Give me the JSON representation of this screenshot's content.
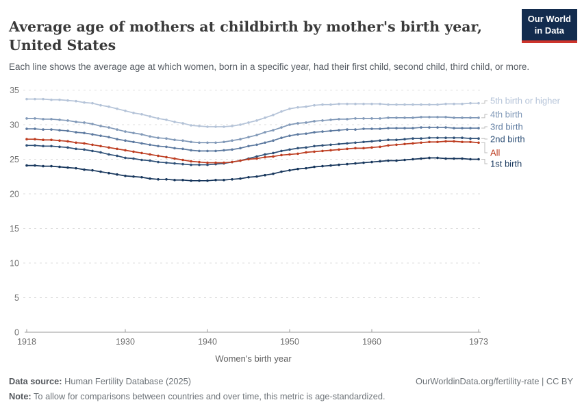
{
  "header": {
    "title": "Average age of mothers at childbirth by mother's birth year, United States",
    "subtitle": "Each line shows the average age at which women, born in a specific year, had their first child, second child, third child, or more.",
    "logo_line1": "Our World",
    "logo_line2": "in Data"
  },
  "chart_data": {
    "type": "line",
    "title": "Average age of mothers at childbirth by mother's birth year, United States",
    "xlabel": "Women's birth year",
    "ylabel": "",
    "x_range": [
      1918,
      1973
    ],
    "ylim": [
      0,
      35
    ],
    "yticks": [
      0,
      5,
      10,
      15,
      20,
      25,
      30,
      35
    ],
    "xticks": [
      1918,
      1930,
      1940,
      1950,
      1960,
      1973
    ],
    "grid": "dashed horizontal gridlines",
    "legend_position": "right",
    "series": [
      {
        "name": "5th birth or higher",
        "color": "#b4c3d8",
        "values": [
          33.7,
          33.7,
          33.7,
          33.6,
          33.6,
          33.5,
          33.4,
          33.2,
          33.1,
          32.8,
          32.6,
          32.3,
          32.0,
          31.7,
          31.5,
          31.2,
          30.9,
          30.7,
          30.4,
          30.2,
          29.9,
          29.8,
          29.7,
          29.7,
          29.7,
          29.8,
          30.0,
          30.3,
          30.6,
          31.0,
          31.4,
          31.9,
          32.3,
          32.5,
          32.6,
          32.8,
          32.9,
          32.9,
          33.0,
          33.0,
          33.0,
          33.0,
          33.0,
          33.0,
          32.9,
          32.9,
          32.9,
          32.9,
          32.9,
          32.9,
          32.9,
          33.0,
          33.0,
          33.0,
          33.1,
          33.1
        ]
      },
      {
        "name": "4th birth",
        "color": "#8199b8",
        "values": [
          30.9,
          30.9,
          30.8,
          30.8,
          30.7,
          30.6,
          30.4,
          30.3,
          30.1,
          29.8,
          29.6,
          29.3,
          29.0,
          28.8,
          28.6,
          28.3,
          28.1,
          28.0,
          27.8,
          27.7,
          27.5,
          27.4,
          27.4,
          27.4,
          27.5,
          27.7,
          27.9,
          28.2,
          28.5,
          28.9,
          29.2,
          29.6,
          30.0,
          30.2,
          30.3,
          30.5,
          30.6,
          30.7,
          30.8,
          30.8,
          30.9,
          30.9,
          30.9,
          30.9,
          31.0,
          31.0,
          31.0,
          31.0,
          31.1,
          31.1,
          31.1,
          31.1,
          31.0,
          31.0,
          31.0,
          31.0
        ]
      },
      {
        "name": "3rd birth",
        "color": "#5d7aa0",
        "values": [
          29.4,
          29.4,
          29.3,
          29.3,
          29.2,
          29.1,
          28.9,
          28.8,
          28.6,
          28.4,
          28.2,
          27.9,
          27.7,
          27.5,
          27.3,
          27.1,
          26.9,
          26.8,
          26.6,
          26.5,
          26.3,
          26.2,
          26.2,
          26.2,
          26.3,
          26.4,
          26.6,
          26.9,
          27.1,
          27.4,
          27.7,
          28.1,
          28.4,
          28.6,
          28.7,
          28.9,
          29.0,
          29.1,
          29.2,
          29.3,
          29.3,
          29.4,
          29.4,
          29.4,
          29.5,
          29.5,
          29.5,
          29.5,
          29.6,
          29.6,
          29.6,
          29.6,
          29.5,
          29.5,
          29.5,
          29.5
        ]
      },
      {
        "name": "2nd birth",
        "color": "#2e5077",
        "values": [
          27.0,
          27.0,
          26.9,
          26.9,
          26.8,
          26.7,
          26.5,
          26.4,
          26.2,
          26.0,
          25.7,
          25.5,
          25.2,
          25.1,
          24.9,
          24.8,
          24.6,
          24.5,
          24.4,
          24.3,
          24.2,
          24.2,
          24.2,
          24.3,
          24.4,
          24.6,
          24.8,
          25.1,
          25.4,
          25.7,
          25.9,
          26.2,
          26.4,
          26.6,
          26.7,
          26.9,
          27.0,
          27.1,
          27.2,
          27.3,
          27.4,
          27.5,
          27.6,
          27.7,
          27.8,
          27.8,
          27.9,
          28.0,
          28.0,
          28.1,
          28.1,
          28.1,
          28.1,
          28.1,
          28.0,
          28.0
        ]
      },
      {
        "name": "All",
        "color": "#bd3d21",
        "values": [
          27.9,
          27.9,
          27.8,
          27.8,
          27.7,
          27.6,
          27.4,
          27.3,
          27.1,
          26.9,
          26.7,
          26.5,
          26.3,
          26.1,
          25.9,
          25.7,
          25.5,
          25.3,
          25.1,
          24.9,
          24.7,
          24.6,
          24.5,
          24.5,
          24.5,
          24.6,
          24.8,
          25.0,
          25.1,
          25.3,
          25.4,
          25.6,
          25.7,
          25.8,
          26.0,
          26.1,
          26.2,
          26.3,
          26.4,
          26.5,
          26.6,
          26.6,
          26.7,
          26.8,
          27.0,
          27.1,
          27.2,
          27.3,
          27.4,
          27.5,
          27.5,
          27.6,
          27.6,
          27.5,
          27.5,
          27.4
        ]
      },
      {
        "name": "1st birth",
        "color": "#17365c",
        "values": [
          24.1,
          24.1,
          24.0,
          24.0,
          23.9,
          23.8,
          23.7,
          23.5,
          23.4,
          23.2,
          23.0,
          22.8,
          22.6,
          22.5,
          22.4,
          22.2,
          22.1,
          22.1,
          22.0,
          22.0,
          21.9,
          21.9,
          21.9,
          22.0,
          22.0,
          22.1,
          22.2,
          22.4,
          22.5,
          22.7,
          22.9,
          23.2,
          23.4,
          23.6,
          23.7,
          23.9,
          24.0,
          24.1,
          24.2,
          24.3,
          24.4,
          24.5,
          24.6,
          24.7,
          24.8,
          24.8,
          24.9,
          25.0,
          25.1,
          25.2,
          25.2,
          25.1,
          25.1,
          25.1,
          25.0,
          25.0
        ]
      }
    ]
  },
  "footer": {
    "source_label": "Data source:",
    "source_value": " Human Fertility Database (2025)",
    "link": "OurWorldinData.org/fertility-rate | CC BY",
    "note_label": "Note:",
    "note_value": " To allow for comparisons between countries and over time, this metric is age-standardized."
  },
  "colors": {
    "logo_background": "#132c4e",
    "logo_stripe": "#ce342c",
    "accent_red": "#bd3d21",
    "gridline": "#dcdcdc",
    "axis": "#9a9a9a"
  }
}
